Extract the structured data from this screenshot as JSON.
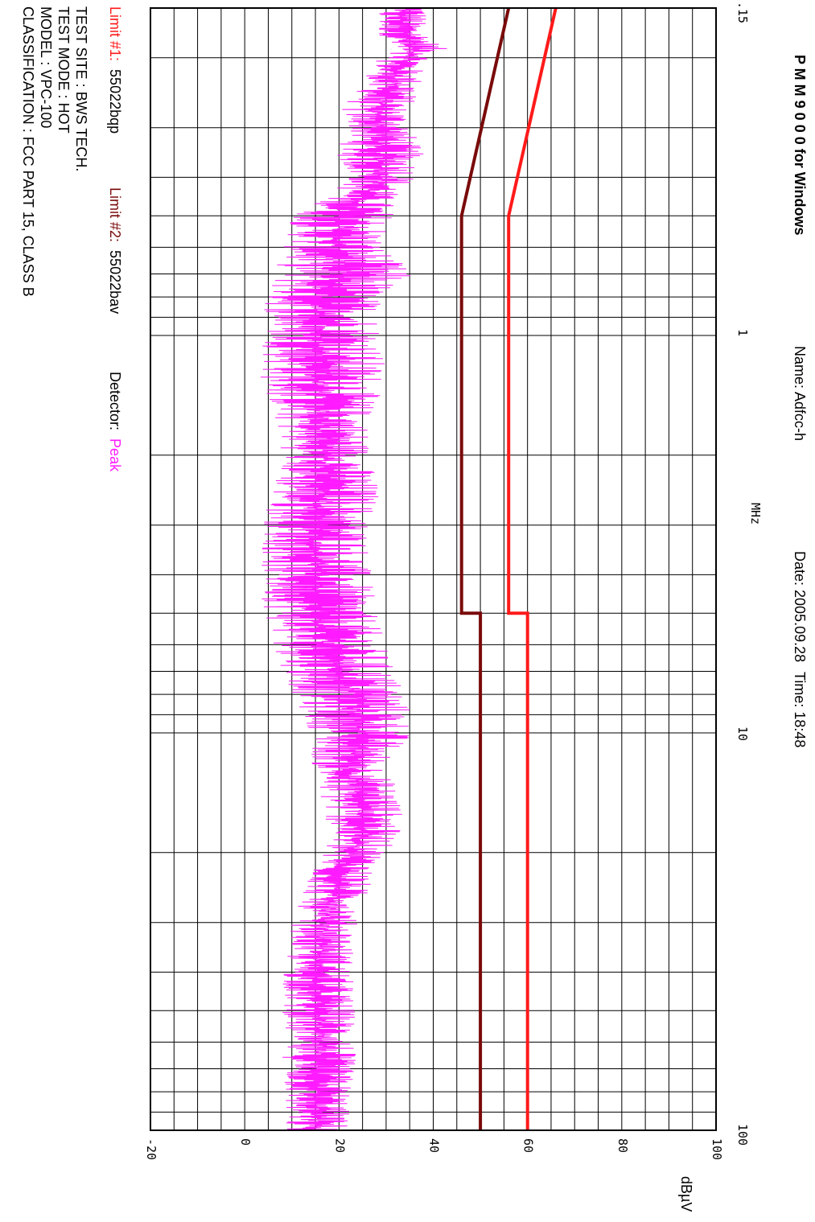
{
  "header": {
    "software": "P M M 9 0 0 0 for Windows",
    "name": "Name: Adfcc-h",
    "date": "Date: 2005.09.28",
    "time": "Time: 18:48"
  },
  "legend": {
    "limit1_label": "Limit #1:",
    "limit1_value": "55022bqp",
    "limit2_label": "Limit #2:",
    "limit2_value": "55022bav",
    "detector_label": "Detector:",
    "detector_value": "Peak",
    "colors": {
      "limit1": "#ff1a1a",
      "limit2": "#7a0a0a",
      "detector": "#ff1aff"
    }
  },
  "info": {
    "test_site": "TEST SITE : BWS TECH.",
    "test_mode": "TEST MODE : HOT",
    "model": "MODEL : VPC-100",
    "classification": "CLASSIFICATION : FCC PART 15, CLASS B"
  },
  "chart_data": {
    "type": "line",
    "xlabel": "MHz",
    "ylabel": "dBµV",
    "x_scale": "log",
    "xlim": [
      0.15,
      100
    ],
    "ylim": [
      -20,
      100
    ],
    "x_ticks": [
      ".15",
      "1",
      "10",
      "100"
    ],
    "y_ticks": [
      "-20",
      "0",
      "20",
      "40",
      "60",
      "80",
      "100"
    ],
    "grid": true,
    "series": [
      {
        "name": "Limit #1: 55022bqp",
        "color": "#ff1a1a",
        "points": [
          [
            0.15,
            66
          ],
          [
            0.5,
            56
          ],
          [
            5,
            56
          ],
          [
            5,
            60
          ],
          [
            30,
            60
          ],
          [
            100,
            60
          ]
        ]
      },
      {
        "name": "Limit #2: 55022bav",
        "color": "#7a0a0a",
        "points": [
          [
            0.15,
            56
          ],
          [
            0.5,
            46
          ],
          [
            5,
            46
          ],
          [
            5,
            50
          ],
          [
            30,
            50
          ],
          [
            100,
            50
          ]
        ]
      },
      {
        "name": "Detector: Peak",
        "color": "#ff1aff",
        "envelope": [
          [
            0.15,
            27,
            40
          ],
          [
            0.17,
            28,
            38
          ],
          [
            0.19,
            30,
            43
          ],
          [
            0.21,
            27,
            38
          ],
          [
            0.24,
            24,
            38
          ],
          [
            0.27,
            20,
            35
          ],
          [
            0.3,
            22,
            36
          ],
          [
            0.35,
            19,
            38
          ],
          [
            0.4,
            22,
            37
          ],
          [
            0.45,
            17,
            32
          ],
          [
            0.5,
            10,
            32
          ],
          [
            0.6,
            8,
            30
          ],
          [
            0.7,
            6,
            36
          ],
          [
            0.8,
            4,
            29
          ],
          [
            1.0,
            4,
            30
          ],
          [
            1.3,
            3,
            30
          ],
          [
            1.6,
            6,
            27
          ],
          [
            2.0,
            8,
            27
          ],
          [
            2.5,
            5,
            29
          ],
          [
            3.0,
            4,
            27
          ],
          [
            4.0,
            3,
            27
          ],
          [
            5.0,
            4,
            28
          ],
          [
            6.0,
            6,
            30
          ],
          [
            7.0,
            8,
            32
          ],
          [
            8.0,
            10,
            35
          ],
          [
            10.0,
            14,
            36
          ],
          [
            12.0,
            14,
            30
          ],
          [
            15.0,
            16,
            34
          ],
          [
            18.0,
            18,
            33
          ],
          [
            22.0,
            14,
            28
          ],
          [
            30.0,
            10,
            24
          ],
          [
            40.0,
            8,
            23
          ],
          [
            60.0,
            8,
            24
          ],
          [
            100.0,
            8,
            22
          ]
        ]
      }
    ]
  }
}
